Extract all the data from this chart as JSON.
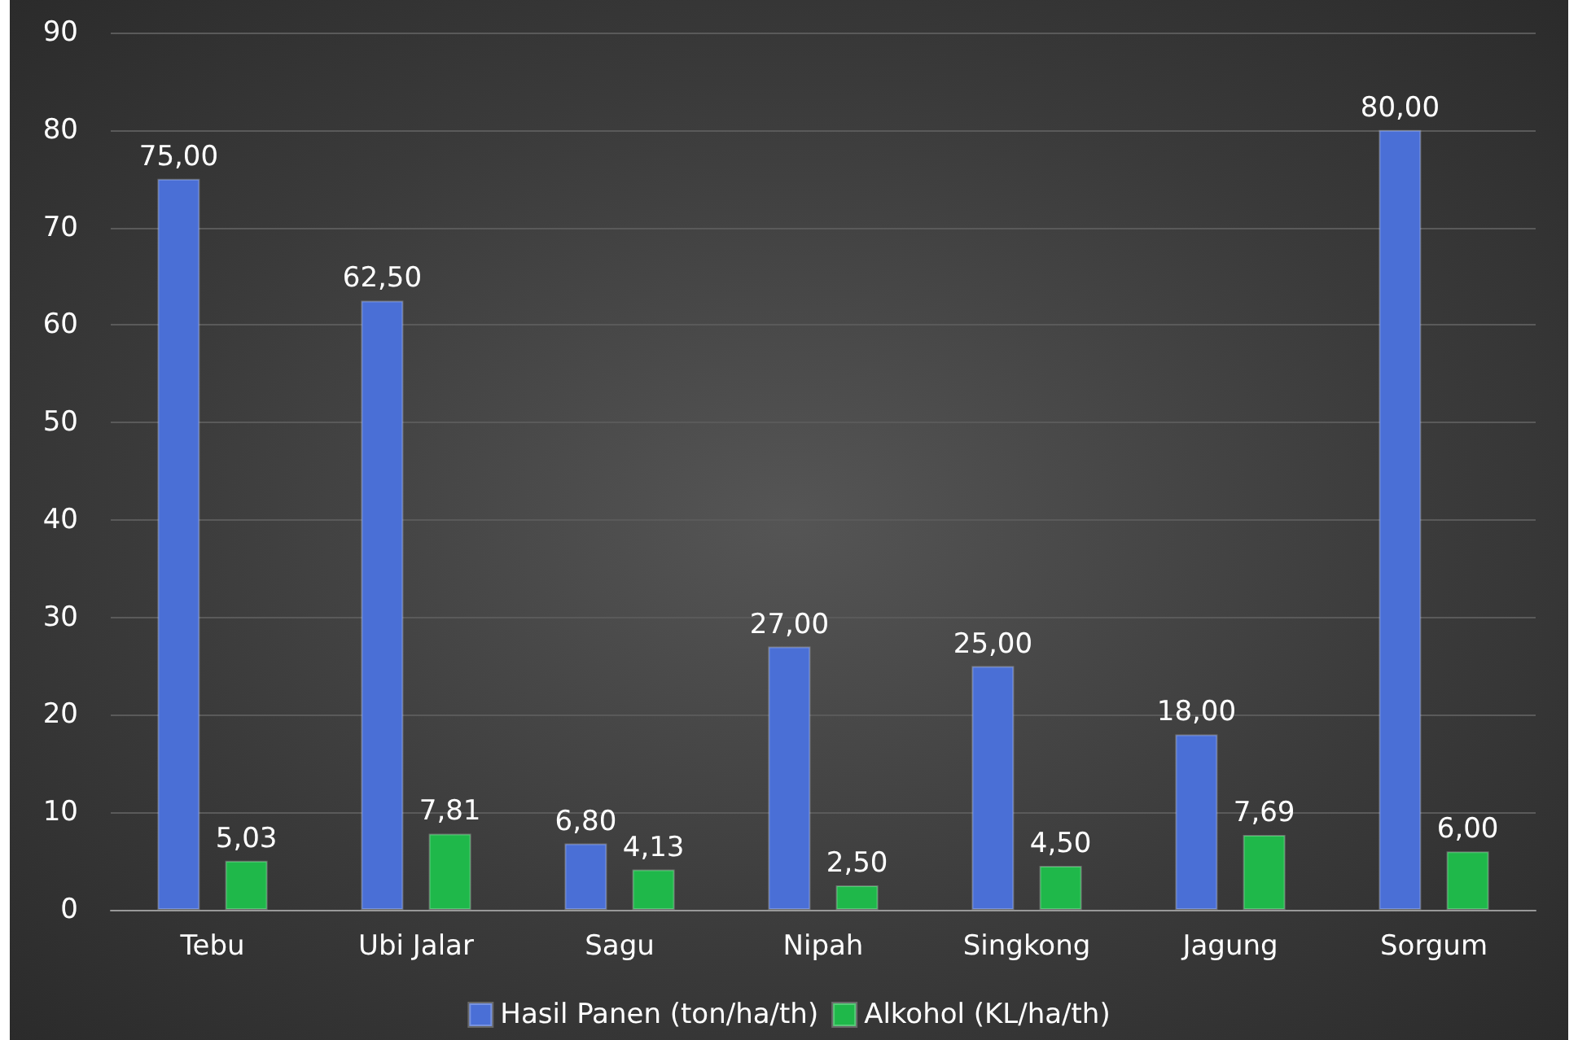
{
  "chart_data": {
    "type": "bar",
    "categories": [
      "Tebu",
      "Ubi Jalar",
      "Sagu",
      "Nipah",
      "Singkong",
      "Jagung",
      "Sorgum"
    ],
    "series": [
      {
        "name": "Hasil Panen (ton/ha/th)",
        "color": "#4a6fd6",
        "values": [
          75,
          62.5,
          6.8,
          27,
          25,
          18,
          80
        ],
        "value_labels": [
          "75,00",
          "62,50",
          "6,80",
          "27,00",
          "25,00",
          "18,00",
          "80,00"
        ]
      },
      {
        "name": "Alkohol (KL/ha/th)",
        "color": "#1fb84a",
        "values": [
          5.03,
          7.81,
          4.13,
          2.5,
          4.5,
          7.69,
          6
        ],
        "value_labels": [
          "5,03",
          "7,81",
          "4,13",
          "2,50",
          "4,50",
          "7,69",
          "6,00"
        ]
      }
    ],
    "ylim": [
      0,
      90
    ],
    "yticks": [
      0,
      10,
      20,
      30,
      40,
      50,
      60,
      70,
      80,
      90
    ],
    "grid": "y",
    "legend": "bottom"
  }
}
